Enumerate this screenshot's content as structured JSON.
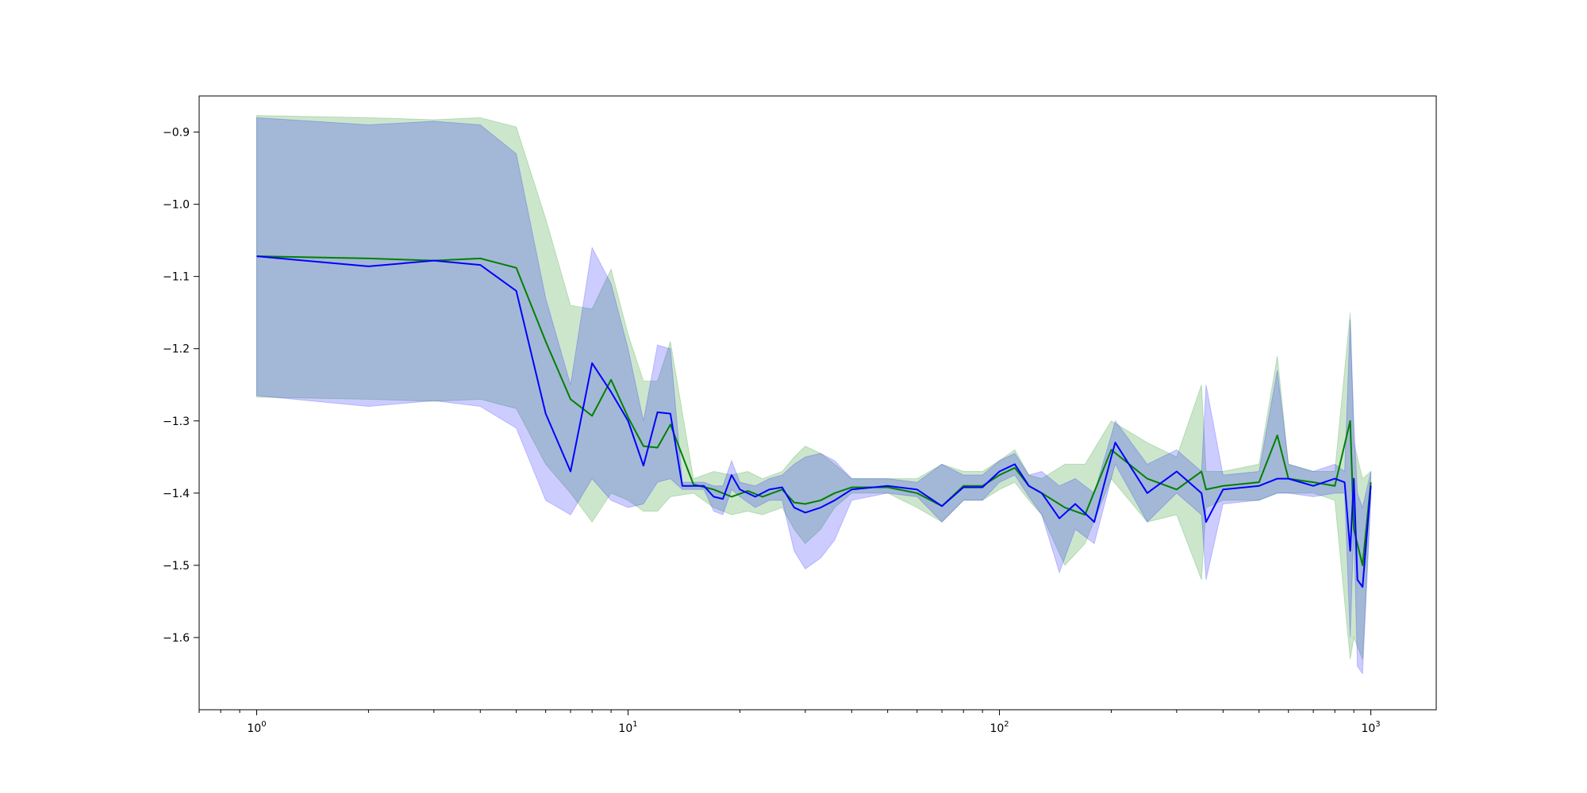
{
  "chart_data": {
    "type": "line",
    "title": "",
    "xlabel": "",
    "ylabel": "",
    "xscale": "log",
    "xlim": [
      0.7,
      1500
    ],
    "ylim": [
      -1.7,
      -0.85
    ],
    "grid": false,
    "legend": "none",
    "x_ticks": [
      {
        "base": "10",
        "exp": "0",
        "value": 1
      },
      {
        "base": "10",
        "exp": "1",
        "value": 10
      },
      {
        "base": "10",
        "exp": "2",
        "value": 100
      },
      {
        "base": "10",
        "exp": "3",
        "value": 1000
      }
    ],
    "y_ticks": [
      {
        "label": "−0.9",
        "value": -0.9
      },
      {
        "label": "−1.0",
        "value": -1.0
      },
      {
        "label": "−1.1",
        "value": -1.1
      },
      {
        "label": "−1.2",
        "value": -1.2
      },
      {
        "label": "−1.3",
        "value": -1.3
      },
      {
        "label": "−1.4",
        "value": -1.4
      },
      {
        "label": "−1.5",
        "value": -1.5
      },
      {
        "label": "−1.6",
        "value": -1.6
      }
    ],
    "series": [
      {
        "color": "#008000",
        "band_color": "#008000",
        "band_opacity": 0.2,
        "x": [
          1,
          2,
          3,
          4,
          5,
          6,
          7,
          8,
          9,
          10,
          11,
          12,
          13,
          15,
          17,
          19,
          21,
          23,
          26,
          28,
          30,
          33,
          36,
          40,
          50,
          60,
          70,
          80,
          90,
          100,
          110,
          120,
          130,
          150,
          170,
          200,
          250,
          300,
          350,
          360,
          400,
          500,
          560,
          600,
          700,
          800,
          880,
          900,
          950,
          1000
        ],
        "y": [
          -1.072,
          -1.075,
          -1.078,
          -1.075,
          -1.088,
          -1.19,
          -1.27,
          -1.293,
          -1.243,
          -1.295,
          -1.335,
          -1.337,
          -1.305,
          -1.388,
          -1.395,
          -1.405,
          -1.397,
          -1.405,
          -1.395,
          -1.413,
          -1.415,
          -1.41,
          -1.4,
          -1.392,
          -1.392,
          -1.4,
          -1.418,
          -1.39,
          -1.39,
          -1.375,
          -1.365,
          -1.39,
          -1.4,
          -1.42,
          -1.43,
          -1.34,
          -1.38,
          -1.395,
          -1.37,
          -1.395,
          -1.39,
          -1.385,
          -1.32,
          -1.38,
          -1.385,
          -1.39,
          -1.3,
          -1.45,
          -1.5,
          -1.385
        ],
        "upper": [
          -0.877,
          -0.88,
          -0.883,
          -0.88,
          -0.893,
          -1.02,
          -1.14,
          -1.145,
          -1.09,
          -1.18,
          -1.245,
          -1.245,
          -1.19,
          -1.38,
          -1.37,
          -1.375,
          -1.37,
          -1.38,
          -1.37,
          -1.35,
          -1.335,
          -1.345,
          -1.36,
          -1.38,
          -1.38,
          -1.38,
          -1.36,
          -1.37,
          -1.37,
          -1.355,
          -1.34,
          -1.375,
          -1.38,
          -1.36,
          -1.36,
          -1.3,
          -1.33,
          -1.35,
          -1.25,
          -1.37,
          -1.37,
          -1.36,
          -1.21,
          -1.36,
          -1.37,
          -1.37,
          -1.15,
          -1.33,
          -1.38,
          -1.37
        ],
        "lower": [
          -1.267,
          -1.27,
          -1.273,
          -1.27,
          -1.283,
          -1.36,
          -1.4,
          -1.44,
          -1.4,
          -1.41,
          -1.425,
          -1.425,
          -1.405,
          -1.4,
          -1.42,
          -1.43,
          -1.425,
          -1.43,
          -1.42,
          -1.45,
          -1.47,
          -1.45,
          -1.42,
          -1.4,
          -1.4,
          -1.42,
          -1.44,
          -1.41,
          -1.41,
          -1.395,
          -1.385,
          -1.41,
          -1.43,
          -1.5,
          -1.47,
          -1.38,
          -1.44,
          -1.43,
          -1.52,
          -1.42,
          -1.41,
          -1.41,
          -1.4,
          -1.4,
          -1.4,
          -1.41,
          -1.63,
          -1.6,
          -1.63,
          -1.4
        ]
      },
      {
        "color": "#0000ff",
        "band_color": "#0000ff",
        "band_opacity": 0.2,
        "x": [
          1,
          2,
          3,
          4,
          5,
          6,
          7,
          8,
          9,
          10,
          11,
          12,
          13,
          14,
          16,
          17,
          18,
          19,
          20,
          22,
          24,
          26,
          28,
          30,
          33,
          36,
          40,
          50,
          60,
          70,
          80,
          90,
          100,
          110,
          120,
          130,
          145,
          160,
          180,
          200,
          205,
          250,
          300,
          350,
          360,
          400,
          500,
          560,
          600,
          700,
          800,
          850,
          880,
          900,
          920,
          950,
          1000
        ],
        "y": [
          -1.072,
          -1.086,
          -1.078,
          -1.084,
          -1.12,
          -1.29,
          -1.37,
          -1.22,
          -1.26,
          -1.3,
          -1.362,
          -1.288,
          -1.29,
          -1.39,
          -1.39,
          -1.405,
          -1.408,
          -1.375,
          -1.395,
          -1.405,
          -1.395,
          -1.392,
          -1.42,
          -1.427,
          -1.42,
          -1.41,
          -1.395,
          -1.39,
          -1.395,
          -1.418,
          -1.392,
          -1.392,
          -1.37,
          -1.36,
          -1.39,
          -1.4,
          -1.435,
          -1.415,
          -1.44,
          -1.35,
          -1.33,
          -1.4,
          -1.37,
          -1.4,
          -1.44,
          -1.395,
          -1.39,
          -1.38,
          -1.38,
          -1.39,
          -1.38,
          -1.385,
          -1.48,
          -1.38,
          -1.52,
          -1.53,
          -1.39
        ],
        "upper": [
          -0.88,
          -0.89,
          -0.885,
          -0.89,
          -0.93,
          -1.13,
          -1.25,
          -1.06,
          -1.11,
          -1.2,
          -1.3,
          -1.195,
          -1.2,
          -1.385,
          -1.385,
          -1.39,
          -1.39,
          -1.355,
          -1.385,
          -1.39,
          -1.38,
          -1.375,
          -1.36,
          -1.35,
          -1.345,
          -1.355,
          -1.38,
          -1.38,
          -1.385,
          -1.36,
          -1.375,
          -1.375,
          -1.355,
          -1.345,
          -1.375,
          -1.37,
          -1.39,
          -1.38,
          -1.4,
          -1.32,
          -1.3,
          -1.36,
          -1.34,
          -1.37,
          -1.25,
          -1.375,
          -1.37,
          -1.23,
          -1.36,
          -1.37,
          -1.36,
          -1.37,
          -1.16,
          -1.3,
          -1.4,
          -1.42,
          -1.37
        ],
        "lower": [
          -1.265,
          -1.28,
          -1.272,
          -1.28,
          -1.31,
          -1.41,
          -1.43,
          -1.38,
          -1.41,
          -1.42,
          -1.415,
          -1.385,
          -1.38,
          -1.395,
          -1.395,
          -1.425,
          -1.43,
          -1.395,
          -1.405,
          -1.42,
          -1.41,
          -1.41,
          -1.48,
          -1.505,
          -1.49,
          -1.465,
          -1.41,
          -1.4,
          -1.405,
          -1.44,
          -1.41,
          -1.41,
          -1.385,
          -1.375,
          -1.405,
          -1.43,
          -1.51,
          -1.45,
          -1.47,
          -1.38,
          -1.36,
          -1.44,
          -1.4,
          -1.43,
          -1.52,
          -1.415,
          -1.41,
          -1.4,
          -1.4,
          -1.405,
          -1.4,
          -1.4,
          -1.6,
          -1.45,
          -1.64,
          -1.65,
          -1.41
        ]
      }
    ]
  }
}
